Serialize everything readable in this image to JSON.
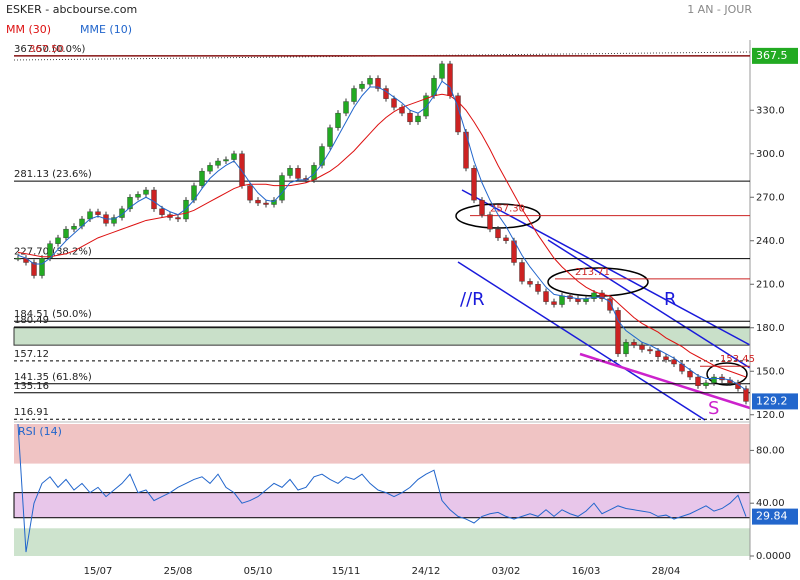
{
  "chart_data": {
    "type": "candlestick",
    "title": "ESKER - abcbourse.com",
    "period": "1 AN - JOUR",
    "categories": [
      null,
      null,
      null,
      null,
      null,
      null,
      null,
      null,
      null,
      null,
      "15/07",
      null,
      null,
      null,
      null,
      null,
      null,
      null,
      null,
      null,
      "25/08",
      null,
      null,
      null,
      null,
      null,
      null,
      null,
      null,
      null,
      "05/10",
      null,
      null,
      null,
      null,
      null,
      null,
      null,
      null,
      null,
      null,
      "15/11",
      null,
      null,
      null,
      null,
      null,
      null,
      null,
      null,
      null,
      "24/12",
      null,
      null,
      null,
      null,
      null,
      null,
      null,
      null,
      null,
      "03/02",
      null,
      null,
      null,
      null,
      null,
      null,
      null,
      null,
      null,
      "16/03",
      null,
      null,
      null,
      null,
      null,
      null,
      null,
      null,
      null,
      "28/04",
      null,
      null,
      null,
      null,
      null,
      null,
      null,
      null,
      null,
      null
    ],
    "series": [
      {
        "name": "ESKER",
        "up_color": "#22aa22",
        "down_color": "#cc2222",
        "values": [
          228,
          225,
          216,
          228,
          238,
          242,
          248,
          250,
          255,
          260,
          258,
          252,
          256,
          262,
          270,
          272,
          275,
          262,
          258,
          256,
          255,
          268,
          278,
          288,
          292,
          295,
          296,
          300,
          278,
          268,
          266,
          265,
          268,
          285,
          290,
          283,
          282,
          292,
          305,
          318,
          328,
          336,
          345,
          348,
          352,
          345,
          338,
          332,
          328,
          322,
          326,
          340,
          352,
          362,
          340,
          315,
          290,
          268,
          258,
          248,
          242,
          240,
          225,
          212,
          210,
          205,
          198,
          196,
          202,
          200,
          198,
          200,
          204,
          200,
          192,
          162,
          170,
          168,
          165,
          164,
          160,
          158,
          155,
          150,
          146,
          140,
          142,
          146,
          144,
          142,
          138,
          129.2
        ]
      },
      {
        "name": "MM (30)",
        "color": "#dd1111",
        "values": [
          232,
          231,
          230,
          229,
          229,
          230,
          231,
          233,
          236,
          239,
          242,
          244,
          246,
          248,
          250,
          252,
          254,
          255,
          256,
          257,
          258,
          259,
          261,
          264,
          267,
          270,
          273,
          276,
          278,
          279,
          279,
          279,
          278,
          278,
          278,
          279,
          280,
          282,
          285,
          288,
          292,
          297,
          302,
          308,
          314,
          320,
          325,
          329,
          332,
          334,
          336,
          338,
          340,
          341,
          340,
          336,
          330,
          322,
          313,
          303,
          292,
          282,
          272,
          262,
          253,
          244,
          236,
          228,
          222,
          217,
          212,
          208,
          205,
          203,
          202,
          197,
          192,
          187,
          183,
          180,
          177,
          173,
          170,
          167,
          163,
          160,
          157,
          154,
          152,
          150,
          148,
          146
        ]
      },
      {
        "name": "MME (10)",
        "color": "#2266cc",
        "values": [
          230,
          228,
          224,
          224,
          228,
          234,
          240,
          245,
          250,
          255,
          257,
          255,
          255,
          258,
          263,
          267,
          270,
          267,
          263,
          260,
          258,
          262,
          268,
          276,
          283,
          288,
          292,
          295,
          288,
          280,
          273,
          268,
          267,
          273,
          280,
          282,
          282,
          286,
          293,
          302,
          312,
          322,
          332,
          340,
          346,
          346,
          343,
          339,
          335,
          330,
          328,
          332,
          340,
          350,
          346,
          332,
          314,
          295,
          280,
          268,
          258,
          250,
          240,
          230,
          222,
          215,
          208,
          203,
          202,
          201,
          200,
          200,
          201,
          201,
          198,
          185,
          178,
          174,
          170,
          168,
          165,
          162,
          159,
          155,
          151,
          147,
          145,
          145,
          145,
          144,
          141,
          137
        ]
      }
    ],
    "ylim": [
      115,
      375
    ],
    "yticks": [
      {
        "value": 330,
        "label": "330.0"
      },
      {
        "value": 300,
        "label": "300.0"
      },
      {
        "value": 270,
        "label": "270.0"
      },
      {
        "value": 240,
        "label": "240.0"
      },
      {
        "value": 210,
        "label": "210.0"
      },
      {
        "value": 180,
        "label": "180.0"
      },
      {
        "value": 150,
        "label": "150.0"
      },
      {
        "value": 120,
        "label": "120.0"
      }
    ],
    "levels": [
      {
        "value": 367.5,
        "label": "367.50 (0.0%)"
      },
      {
        "value": 281.13,
        "label": "281.13 (23.6%)"
      },
      {
        "value": 227.7,
        "label": "227.70 (38.2%)"
      },
      {
        "value": 184.51,
        "label": "184.51 (50.0%)"
      },
      {
        "value": 180.49,
        "label": "180.49"
      },
      {
        "value": 157.12,
        "label": "157.12",
        "dashed": true
      },
      {
        "value": 141.35,
        "label": "141.35 (61.8%)"
      },
      {
        "value": 135.16,
        "label": "135.16"
      },
      {
        "value": 116.91,
        "label": "116.91",
        "dashed": true
      }
    ],
    "red_levels": [
      {
        "value": 367.5,
        "label": "367.50"
      },
      {
        "value": 257.3,
        "label": "257.30"
      },
      {
        "value": 213.71,
        "label": "213.71"
      },
      {
        "value": 153.45,
        "label": "153.45"
      }
    ],
    "zone": [
      168,
      180
    ],
    "resistance_value": 367.5,
    "annotations": [
      "//R",
      "R",
      "S"
    ],
    "rsi": {
      "name": "RSI (14)",
      "color": "#2266cc",
      "values": [
        100,
        3,
        40,
        55,
        60,
        52,
        58,
        50,
        55,
        48,
        52,
        45,
        50,
        55,
        62,
        48,
        50,
        42,
        45,
        48,
        52,
        55,
        58,
        60,
        55,
        62,
        52,
        48,
        40,
        42,
        45,
        50,
        55,
        52,
        58,
        50,
        52,
        60,
        62,
        58,
        55,
        60,
        58,
        62,
        55,
        50,
        48,
        45,
        48,
        52,
        58,
        62,
        65,
        42,
        35,
        30,
        28,
        25,
        30,
        32,
        33,
        30,
        28,
        30,
        32,
        30,
        35,
        30,
        35,
        32,
        30,
        34,
        40,
        32,
        35,
        38,
        36,
        35,
        34,
        33,
        30,
        31,
        28,
        30,
        32,
        35,
        38,
        34,
        36,
        40,
        46,
        29.84
      ],
      "ylim": [
        0,
        100
      ],
      "yticks": [
        {
          "value": 80,
          "label": "80.00"
        },
        {
          "value": 40,
          "label": "40.00"
        },
        {
          "value": 0,
          "label": "0.0000"
        }
      ],
      "zones": [
        {
          "range": [
            70,
            100
          ],
          "color": "#f0c4c4"
        },
        {
          "range": [
            29,
            48
          ],
          "color": "#e8c6ea"
        },
        {
          "range": [
            0,
            21
          ],
          "color": "#cde3cd"
        }
      ]
    }
  }
}
